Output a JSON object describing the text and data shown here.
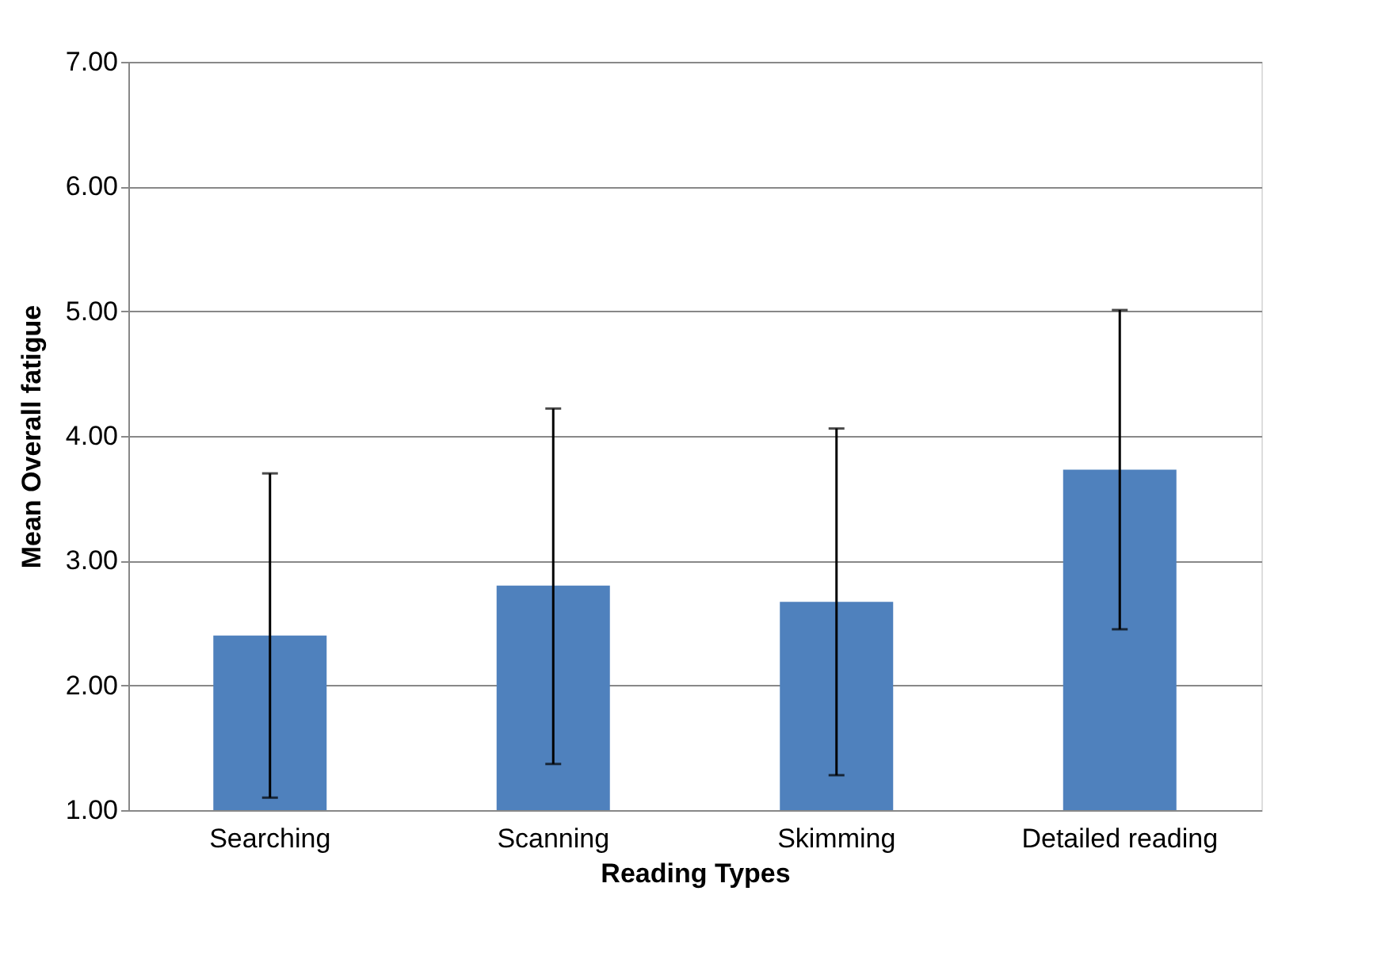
{
  "chart_data": {
    "type": "bar",
    "xlabel": "Reading Types",
    "ylabel": "Mean  Overall fatigue",
    "categories": [
      "Searching",
      "Scanning",
      "Skimming",
      "Detailed reading"
    ],
    "series": [
      {
        "color": "#4f81bd",
        "values": [
          2.4,
          2.8,
          2.67,
          3.73
        ],
        "errors": [
          [
            1.1,
            3.7
          ],
          [
            1.37,
            4.22
          ],
          [
            1.28,
            4.06
          ],
          [
            2.45,
            5.01
          ]
        ]
      }
    ],
    "ylim": [
      1,
      7
    ],
    "yticks": [
      {
        "value": 1,
        "label": "1.00"
      },
      {
        "value": 2,
        "label": "2.00"
      },
      {
        "value": 3,
        "label": "3.00"
      },
      {
        "value": 4,
        "label": "4.00"
      },
      {
        "value": 5,
        "label": "5.00"
      },
      {
        "value": 6,
        "label": "6.00"
      },
      {
        "value": 7,
        "label": "7.00"
      }
    ],
    "grid": "y"
  }
}
